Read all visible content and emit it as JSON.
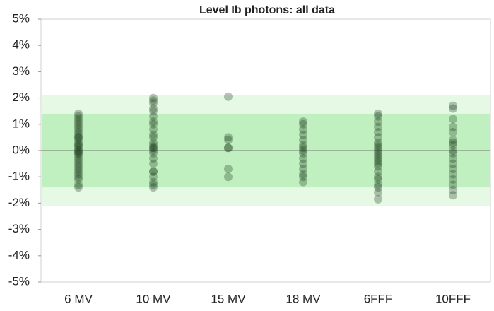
{
  "chart_data": {
    "type": "strip",
    "title": "Level Ib photons: all data",
    "categories": [
      "6 MV",
      "10 MV",
      "15 MV",
      "18 MV",
      "6FFF",
      "10FFF"
    ],
    "values": [
      [
        1.4,
        1.3,
        1.2,
        1.1,
        1.0,
        0.9,
        0.8,
        0.7,
        0.6,
        0.5,
        0.4,
        0.3,
        0.2,
        0.1,
        0,
        -0.1,
        -0.2,
        -0.3,
        -0.4,
        -0.5,
        -0.6,
        -0.7,
        -0.8,
        -0.9,
        -1.0,
        -1.1,
        -1.3,
        -1.4,
        0.2,
        0,
        -0.1,
        0.5
      ],
      [
        2.0,
        1.9,
        1.8,
        1.6,
        1.5,
        1.3,
        1.1,
        1.0,
        0.8,
        0.6,
        0.5,
        0.3,
        0.1,
        0,
        -0.1,
        -0.3,
        -0.5,
        -0.8,
        -0.8,
        -1.0,
        -1.2,
        -1.3,
        -1.4,
        0.1,
        0.2
      ],
      [
        2.05,
        0.5,
        0.4,
        0.1,
        0.1,
        -0.7,
        -1.0
      ],
      [
        1.1,
        1.0,
        0.8,
        0.6,
        0.4,
        0.2,
        0.1,
        0,
        -0.1,
        -0.3,
        -0.5,
        -0.7,
        -0.9,
        -1.0,
        -1.2
      ],
      [
        1.4,
        1.3,
        1.1,
        0.9,
        0.7,
        0.5,
        0.3,
        0.2,
        0.1,
        0,
        -0.1,
        -0.2,
        -0.3,
        -0.4,
        -0.5,
        -0.6,
        -0.8,
        -1.0,
        -1.1,
        -1.3,
        -1.4,
        -1.6,
        -1.85
      ],
      [
        1.7,
        1.6,
        1.2,
        0.9,
        0.7,
        0.4,
        0.3,
        0.2,
        0,
        -0.1,
        -0.3,
        -0.5,
        -0.7,
        -0.9,
        -1.1,
        -1.3,
        -1.5,
        -1.7
      ]
    ],
    "color": "#1c3a1c",
    "bands": [
      {
        "from": -2.1,
        "to": 2.1,
        "color": "#e5f9e5"
      },
      {
        "from": -1.4,
        "to": 1.4,
        "color": "#c0efc0"
      }
    ],
    "ylim": [
      -5,
      5
    ],
    "yticks": [
      {
        "value": -5,
        "label": "-5%"
      },
      {
        "value": -4,
        "label": "-4%"
      },
      {
        "value": -3,
        "label": "-3%"
      },
      {
        "value": -2,
        "label": "-2%"
      },
      {
        "value": -1,
        "label": "-1%"
      },
      {
        "value": 0,
        "label": "0%"
      },
      {
        "value": 1,
        "label": "1%"
      },
      {
        "value": 2,
        "label": "2%"
      },
      {
        "value": 3,
        "label": "3%"
      },
      {
        "value": 4,
        "label": "4%"
      },
      {
        "value": 5,
        "label": "5%"
      }
    ]
  }
}
